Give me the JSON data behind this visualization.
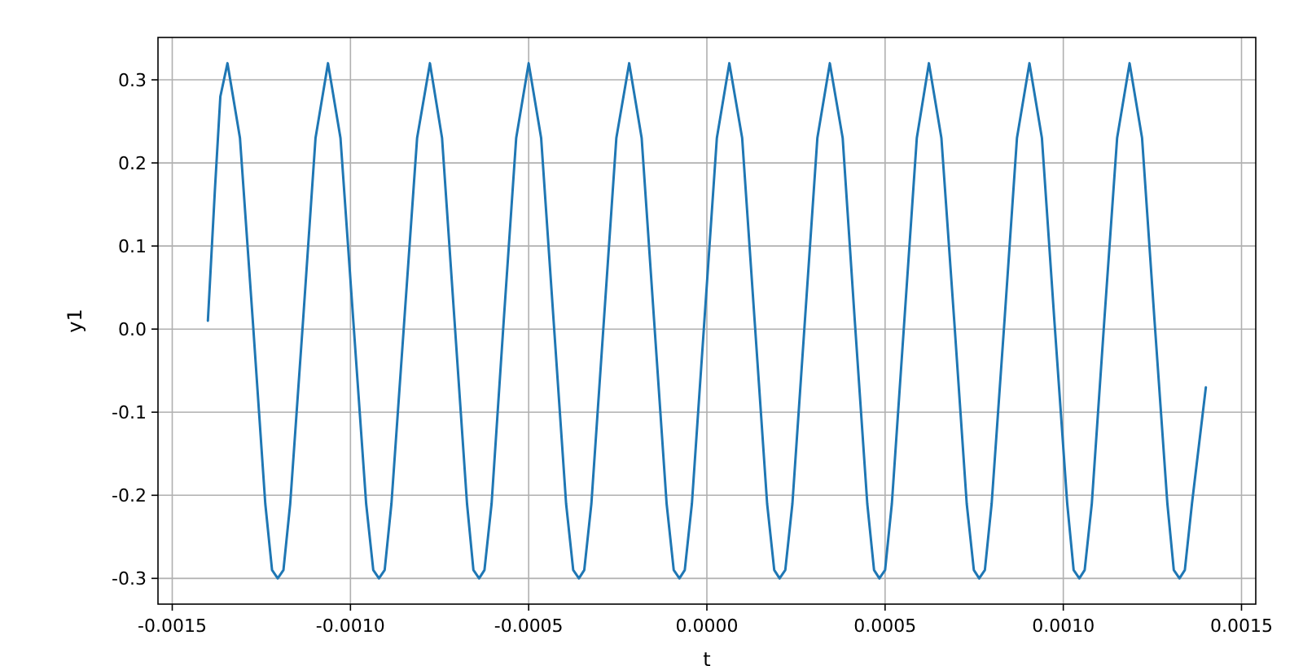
{
  "chart_data": {
    "type": "line",
    "xlabel": "t",
    "ylabel": "y1",
    "grid": true,
    "marker": "none",
    "line_style": "solid",
    "xlim": [
      -0.00154,
      0.00154
    ],
    "ylim": [
      -0.331,
      0.351
    ],
    "xticks": [
      {
        "value": -0.0015,
        "label": "-0.0015"
      },
      {
        "value": -0.001,
        "label": "-0.0010"
      },
      {
        "value": -0.0005,
        "label": "-0.0005"
      },
      {
        "value": 0,
        "label": "0.0000"
      },
      {
        "value": 0.0005,
        "label": "0.0005"
      },
      {
        "value": 0.001,
        "label": "0.0010"
      },
      {
        "value": 0.0015,
        "label": "0.0015"
      }
    ],
    "yticks": [
      {
        "value": -0.3,
        "label": "-0.3"
      },
      {
        "value": -0.2,
        "label": "-0.2"
      },
      {
        "value": -0.1,
        "label": "-0.1"
      },
      {
        "value": 0,
        "label": "0.0"
      },
      {
        "value": 0.1,
        "label": "0.1"
      },
      {
        "value": 0.2,
        "label": "0.2"
      },
      {
        "value": 0.3,
        "label": "0.3"
      }
    ],
    "series": [
      {
        "color": "#1f77b4",
        "x": [
          -0.0014,
          -0.00138,
          -0.001365,
          -0.001345,
          -0.00131,
          -0.001274,
          -0.001239,
          -0.00122,
          -0.001204,
          -0.001188,
          -0.001169,
          -0.001133,
          -0.001098,
          -0.001063,
          -0.001028,
          -0.000992,
          -0.000956,
          -0.000936,
          -0.00092,
          -0.000904,
          -0.000885,
          -0.000849,
          -0.000813,
          -0.000777,
          -0.000743,
          -0.000708,
          -0.000673,
          -0.000655,
          -0.000639,
          -0.000624,
          -0.000604,
          -0.00057,
          -0.000535,
          -0.0005,
          -0.000465,
          -0.00043,
          -0.000395,
          -0.000375,
          -0.000359,
          -0.000344,
          -0.000324,
          -0.000289,
          -0.000254,
          -0.000218,
          -0.000183,
          -0.000148,
          -0.000113,
          -9.3e-05,
          -7.7e-05,
          -6.2e-05,
          -4.2e-05,
          -7e-06,
          2.8e-05,
          6.3e-05,
          9.9e-05,
          0.000134,
          0.000169,
          0.000189,
          0.000204,
          0.00022,
          0.00024,
          0.000275,
          0.00031,
          0.000345,
          0.000381,
          0.000415,
          0.00045,
          0.000469,
          0.000484,
          0.0005,
          0.000519,
          0.000554,
          0.000589,
          0.000623,
          0.000658,
          0.000694,
          0.000729,
          0.000749,
          0.000764,
          0.00078,
          0.000799,
          0.000835,
          0.00087,
          0.000905,
          0.00094,
          0.000975,
          0.001011,
          0.001029,
          0.001045,
          0.00106,
          0.00108,
          0.001115,
          0.001151,
          0.001186,
          0.001221,
          0.001256,
          0.001292,
          0.00131,
          0.001326,
          0.001341,
          0.001361,
          0.0014
        ],
        "values": [
          0.01,
          0.17,
          0.28,
          0.32,
          0.23,
          0.01,
          -0.21,
          -0.29,
          -0.3,
          -0.29,
          -0.21,
          0.01,
          0.23,
          0.32,
          0.23,
          0.01,
          -0.21,
          -0.29,
          -0.3,
          -0.29,
          -0.21,
          0.01,
          0.23,
          0.32,
          0.23,
          0.01,
          -0.21,
          -0.29,
          -0.3,
          -0.29,
          -0.21,
          0.01,
          0.23,
          0.32,
          0.23,
          0.01,
          -0.21,
          -0.29,
          -0.3,
          -0.29,
          -0.21,
          0.01,
          0.23,
          0.32,
          0.23,
          0.01,
          -0.21,
          -0.29,
          -0.3,
          -0.29,
          -0.21,
          0.01,
          0.23,
          0.32,
          0.23,
          0.01,
          -0.21,
          -0.29,
          -0.3,
          -0.29,
          -0.21,
          0.01,
          0.23,
          0.32,
          0.23,
          0.01,
          -0.21,
          -0.29,
          -0.3,
          -0.29,
          -0.21,
          0.01,
          0.23,
          0.32,
          0.23,
          0.01,
          -0.21,
          -0.29,
          -0.3,
          -0.29,
          -0.21,
          0.01,
          0.23,
          0.32,
          0.23,
          0.01,
          -0.21,
          -0.29,
          -0.3,
          -0.29,
          -0.21,
          0.01,
          0.23,
          0.32,
          0.23,
          0.01,
          -0.21,
          -0.29,
          -0.3,
          -0.29,
          -0.21,
          -0.07
        ]
      }
    ]
  }
}
